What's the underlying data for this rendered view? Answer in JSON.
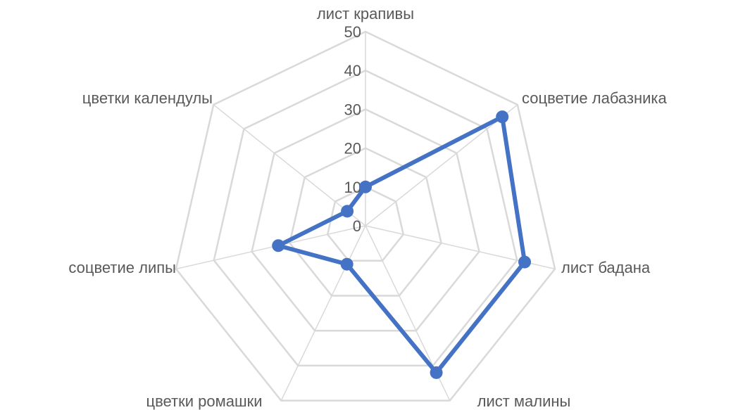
{
  "chart_data": {
    "type": "radar",
    "title": "",
    "categories": [
      "лист крапивы",
      "соцветие лабазника",
      "лист бадана",
      "лист малины",
      "цветки ромашки",
      "соцветие липы",
      "цветки календулы"
    ],
    "series": [
      {
        "values": [
          10,
          45,
          42,
          42,
          11,
          23,
          6
        ],
        "color": "#4472c4"
      }
    ],
    "rlim": [
      0,
      50
    ],
    "ticks": [
      0,
      10,
      20,
      30,
      40,
      50
    ],
    "grid": true,
    "legend": "none",
    "colors": {
      "series": "#4472c4",
      "grid": "#d9d9d9",
      "text": "#595959"
    }
  }
}
